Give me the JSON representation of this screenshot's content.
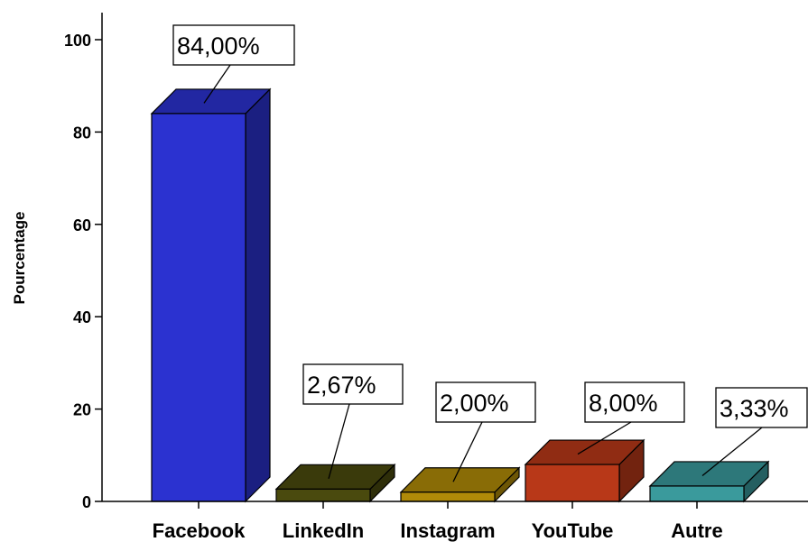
{
  "chart_data": {
    "type": "bar",
    "style": "3d",
    "title": "",
    "xlabel": "",
    "ylabel": "Pourcentage",
    "ylim": [
      0,
      100
    ],
    "yticks": [
      0,
      20,
      40,
      60,
      80,
      100
    ],
    "ytick_labels": [
      "0",
      "20",
      "40",
      "60",
      "80",
      "100"
    ],
    "categories": [
      "Facebook",
      "LinkedIn",
      "Instagram",
      "YouTube",
      "Autre"
    ],
    "values": [
      84.0,
      2.67,
      2.0,
      8.0,
      3.33
    ],
    "data_labels": [
      "84,00%",
      "2,67%",
      "2,00%",
      "8,00%",
      "3,33%"
    ],
    "colors": [
      "#2b32d0",
      "#4a4a0e",
      "#b08a08",
      "#b83818",
      "#3a9a9c"
    ],
    "grid": false,
    "legend": "none"
  }
}
